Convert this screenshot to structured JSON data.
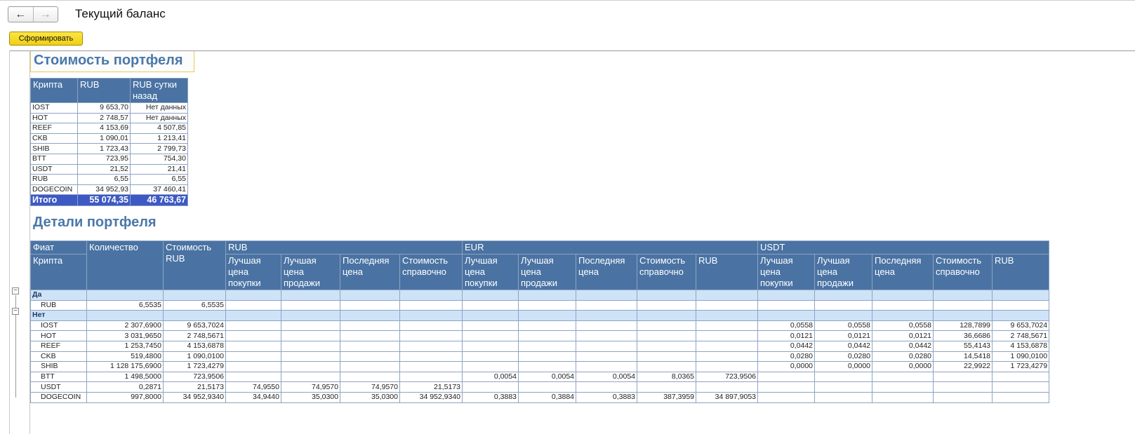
{
  "window": {
    "title": "Текущий баланс"
  },
  "nav": {
    "back_icon": "←",
    "forward_icon": "→"
  },
  "toolbar": {
    "generate_label": "Сформировать"
  },
  "portfolio_value": {
    "title": "Стоимость портфеля",
    "columns": [
      "Крипта",
      "RUB",
      "RUB сутки назад"
    ],
    "rows": [
      {
        "coin": "IOST",
        "rub": "9 653,70",
        "rub_day_ago": "Нет данных"
      },
      {
        "coin": "HOT",
        "rub": "2 748,57",
        "rub_day_ago": "Нет данных"
      },
      {
        "coin": "REEF",
        "rub": "4 153,69",
        "rub_day_ago": "4 507,85"
      },
      {
        "coin": "CKB",
        "rub": "1 090,01",
        "rub_day_ago": "1 213,41"
      },
      {
        "coin": "SHIB",
        "rub": "1 723,43",
        "rub_day_ago": "2 799,73"
      },
      {
        "coin": "BTT",
        "rub": "723,95",
        "rub_day_ago": "754,30"
      },
      {
        "coin": "USDT",
        "rub": "21,52",
        "rub_day_ago": "21,41"
      },
      {
        "coin": "RUB",
        "rub": "6,55",
        "rub_day_ago": "6,55"
      },
      {
        "coin": "DOGECOIN",
        "rub": "34 952,93",
        "rub_day_ago": "37 460,41"
      }
    ],
    "total": {
      "label": "Итого",
      "rub": "55 074,35",
      "rub_day_ago": "46 763,67"
    }
  },
  "portfolio_details": {
    "title": "Детали портфеля",
    "header": {
      "fiat": "Фиат",
      "crypto": "Крипта",
      "quantity": "Количество",
      "value_rub": "Стоимость RUB",
      "groups": [
        "RUB",
        "EUR",
        "USDT"
      ],
      "best_buy": "Лучшая цена покупки",
      "best_sell": "Лучшая цена продажи",
      "last_price": "Последняя цена",
      "ref_value": "Стоимость справочно",
      "rub": "RUB"
    },
    "group_yes": {
      "label": "Да",
      "rows": [
        {
          "coin": "RUB",
          "qty": "6,5535",
          "value": "6,5535",
          "rub": [
            "",
            "",
            "",
            ""
          ],
          "eur": [
            "",
            "",
            "",
            "",
            ""
          ],
          "usdt": [
            "",
            "",
            "",
            "",
            ""
          ]
        }
      ]
    },
    "group_no": {
      "label": "Нет",
      "rows": [
        {
          "coin": "IOST",
          "qty": "2 307,6900",
          "value": "9 653,7024",
          "rub": [
            "",
            "",
            "",
            ""
          ],
          "eur": [
            "",
            "",
            "",
            "",
            ""
          ],
          "usdt": [
            "0,0558",
            "0,0558",
            "0,0558",
            "128,7899",
            "9 653,7024"
          ]
        },
        {
          "coin": "HOT",
          "qty": "3 031,9650",
          "value": "2 748,5671",
          "rub": [
            "",
            "",
            "",
            ""
          ],
          "eur": [
            "",
            "",
            "",
            "",
            ""
          ],
          "usdt": [
            "0,0121",
            "0,0121",
            "0,0121",
            "36,6686",
            "2 748,5671"
          ]
        },
        {
          "coin": "REEF",
          "qty": "1 253,7450",
          "value": "4 153,6878",
          "rub": [
            "",
            "",
            "",
            ""
          ],
          "eur": [
            "",
            "",
            "",
            "",
            ""
          ],
          "usdt": [
            "0,0442",
            "0,0442",
            "0,0442",
            "55,4143",
            "4 153,6878"
          ]
        },
        {
          "coin": "CKB",
          "qty": "519,4800",
          "value": "1 090,0100",
          "rub": [
            "",
            "",
            "",
            ""
          ],
          "eur": [
            "",
            "",
            "",
            "",
            ""
          ],
          "usdt": [
            "0,0280",
            "0,0280",
            "0,0280",
            "14,5418",
            "1 090,0100"
          ]
        },
        {
          "coin": "SHIB",
          "qty": "1 128 175,6900",
          "value": "1 723,4279",
          "rub": [
            "",
            "",
            "",
            ""
          ],
          "eur": [
            "",
            "",
            "",
            "",
            ""
          ],
          "usdt": [
            "0,0000",
            "0,0000",
            "0,0000",
            "22,9922",
            "1 723,4279"
          ]
        },
        {
          "coin": "BTT",
          "qty": "1 498,5000",
          "value": "723,9506",
          "rub": [
            "",
            "",
            "",
            ""
          ],
          "eur": [
            "0,0054",
            "0,0054",
            "0,0054",
            "8,0365",
            "723,9506"
          ],
          "usdt": [
            "",
            "",
            "",
            "",
            ""
          ]
        },
        {
          "coin": "USDT",
          "qty": "0,2871",
          "value": "21,5173",
          "rub": [
            "74,9550",
            "74,9570",
            "74,9570",
            "21,5173"
          ],
          "eur": [
            "",
            "",
            "",
            "",
            ""
          ],
          "usdt": [
            "",
            "",
            "",
            "",
            ""
          ]
        },
        {
          "coin": "DOGECOIN",
          "qty": "997,8000",
          "value": "34 952,9340",
          "rub": [
            "34,9440",
            "35,0300",
            "35,0300",
            "34 952,9340"
          ],
          "eur": [
            "0,3883",
            "0,3884",
            "0,3883",
            "387,3959",
            "34 897,9053"
          ],
          "usdt": [
            "",
            "",
            "",
            "",
            ""
          ]
        }
      ]
    }
  }
}
